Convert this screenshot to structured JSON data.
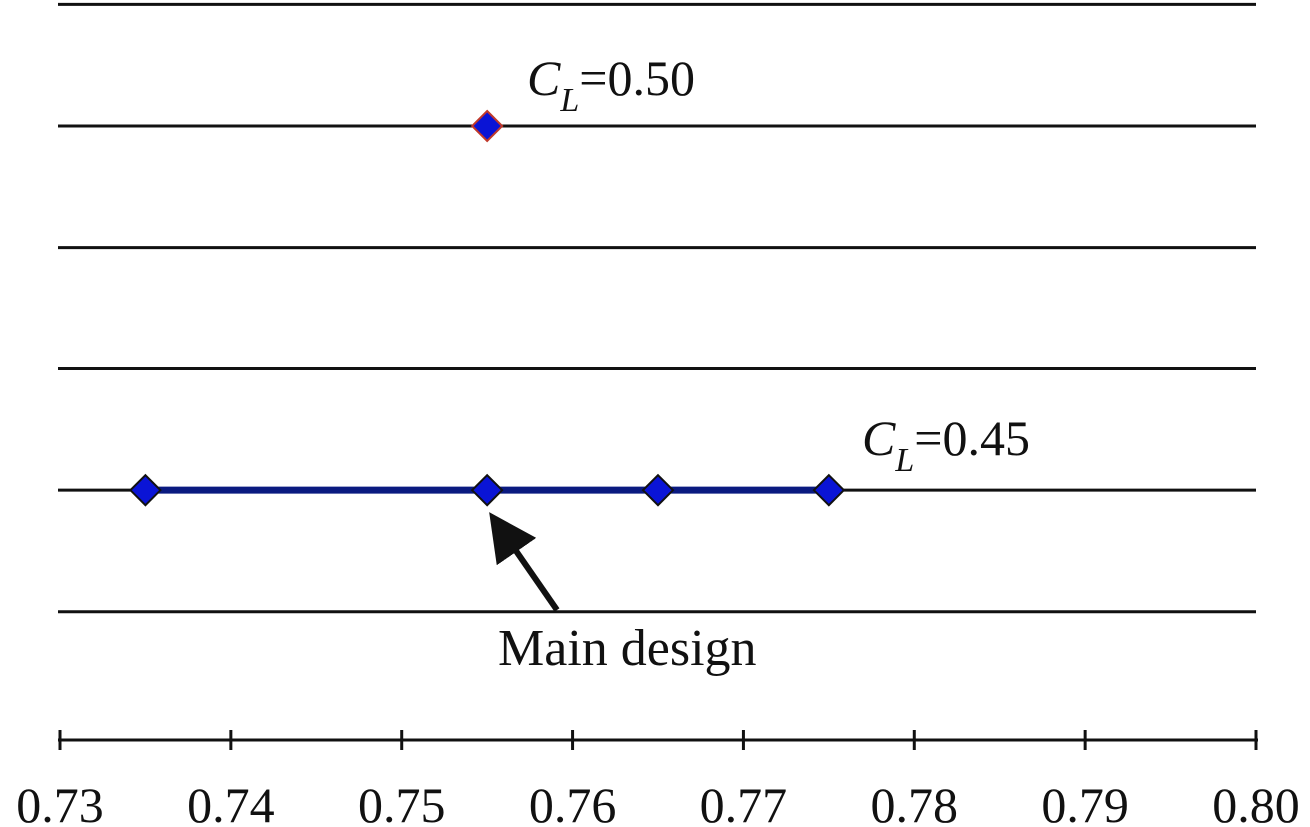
{
  "chart_data": {
    "type": "line",
    "xlim": [
      0.73,
      0.8
    ],
    "xticks": [
      0.73,
      0.74,
      0.75,
      0.76,
      0.77,
      0.78,
      0.79,
      {
        "value": 0.8,
        "label": "0.80"
      }
    ],
    "ylim": [
      0.4157,
      0.5173
    ],
    "ygrid": [
      0.5167,
      0.5,
      0.4833,
      0.4667,
      0.45,
      0.4333
    ],
    "series": [
      {
        "color": "#0a14d6",
        "edge": "#c0392b",
        "x": [
          0.755
        ],
        "values": [
          0.5
        ]
      },
      {
        "color": "#0a14d6",
        "edge": "#111111",
        "line": "#0a1a80",
        "x": [
          0.735,
          0.755,
          0.765,
          0.775
        ],
        "values": [
          0.45,
          0.45,
          0.45,
          0.45
        ]
      }
    ],
    "annotations": [
      {
        "symbol": "C",
        "subscript": "L",
        "text": "=0.50"
      },
      {
        "symbol": "C",
        "subscript": "L",
        "text": "=0.45"
      },
      {
        "text": "Main design"
      }
    ]
  }
}
